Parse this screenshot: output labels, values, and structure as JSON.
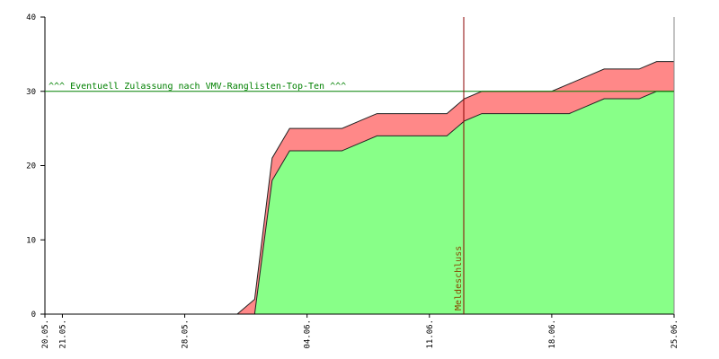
{
  "chart_data": {
    "type": "area",
    "categories": [
      "20.05.",
      "21.05.",
      null,
      null,
      null,
      null,
      null,
      null,
      "28.05.",
      null,
      null,
      null,
      null,
      null,
      null,
      "04.06.",
      null,
      null,
      null,
      null,
      null,
      null,
      "11.06.",
      null,
      null,
      null,
      null,
      null,
      null,
      "18.06.",
      null,
      null,
      null,
      null,
      null,
      null,
      "25.06."
    ],
    "series": [
      {
        "color": "#88ff88",
        "values": [
          0,
          0,
          0,
          0,
          0,
          0,
          0,
          0,
          0,
          0,
          0,
          0,
          0,
          18,
          22,
          22,
          22,
          22,
          23,
          24,
          24,
          24,
          24,
          24,
          26,
          27,
          27,
          27,
          27,
          27,
          27,
          28,
          29,
          29,
          29,
          30,
          30
        ]
      },
      {
        "color": "#ff8888",
        "values": [
          0,
          0,
          0,
          0,
          0,
          0,
          0,
          0,
          0,
          0,
          0,
          0,
          2,
          3,
          3,
          3,
          3,
          3,
          3,
          3,
          3,
          3,
          3,
          3,
          3,
          3,
          3,
          3,
          3,
          3,
          4,
          4,
          4,
          4,
          4,
          4,
          4
        ]
      }
    ],
    "ylim": [
      0,
      40
    ],
    "yticks": [
      0,
      10,
      20,
      30,
      40
    ],
    "hline": {
      "value": 30,
      "label": "^^^ Eventuell Zulassung nach VMV-Ranglisten-Top-Ten ^^^",
      "color": "#008000"
    },
    "vline": {
      "label": "Meldeschluss",
      "color": "#8b0000"
    }
  }
}
